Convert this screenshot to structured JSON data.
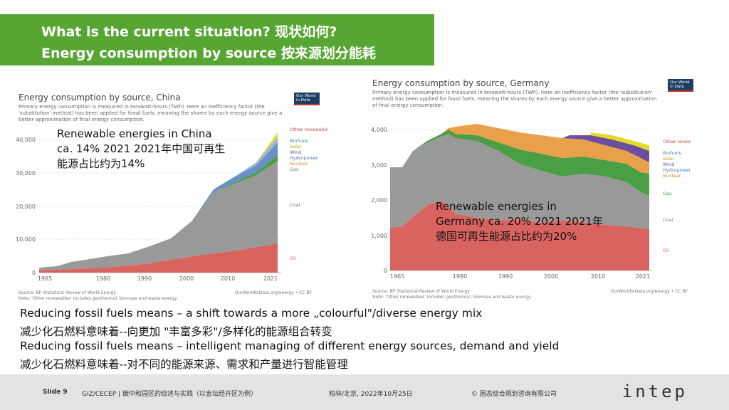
{
  "slide_title": {
    "line1": "What is the current situation? 现状如何?",
    "line2": "Energy consumption by source 按来源划分能耗"
  },
  "china_chart": {
    "title": "Energy consumption by source, China",
    "subtitle": "Primary energy consumption is measured in terawatt-hours (TWh). Here an inefficiency factor (the 'substitution' method) has been applied for fossil fuels, meaning the shares by each energy source give a better approximation of final energy consumption.",
    "logo": "Our World in Data",
    "y_ticks": [
      "40,000",
      "30,000",
      "20,000",
      "10,000",
      "0"
    ],
    "x_ticks": [
      "1965",
      "1980",
      "1990",
      "2000",
      "2010",
      "2021"
    ],
    "overlay": "Renewable energies in China ca. 14% 2021 2021年中国可再生能源占比约为14%",
    "legend": [
      "Other renewables",
      "Biofuels",
      "Solar",
      "Wind",
      "Hydropower",
      "Nuclear",
      "Gas",
      "Coal",
      "Oil"
    ],
    "source": "Source: BP Statistical Review of World Energy",
    "note": "Note: 'Other renewables' includes geothermal, biomass and waste energy.",
    "credit": "OurWorldInData.org/energy • CC BY"
  },
  "germany_chart": {
    "title": "Energy consumption by source, Germany",
    "subtitle": "Primary energy consumption is measured in terawatt-hours (TWh). Here an inefficiency factor (the 'substitution' method) has been applied for fossil fuels, meaning the shares by each energy source give a better approximation of final energy consumption.",
    "logo": "Our World in Data",
    "y_ticks": [
      "4,000",
      "3,000",
      "2,000",
      "1,000",
      "0"
    ],
    "x_ticks": [
      "1965",
      "1980",
      "1990",
      "2000",
      "2010",
      "2021"
    ],
    "overlay": "Renewable energies in Germany ca. 20% 2021 2021年德国可再生能源占比约为20%",
    "legend": [
      "Other renewables",
      "Biofuels",
      "Solar",
      "Wind",
      "Hydropower",
      "Nuclear",
      "Gas",
      "Coal",
      "Oil"
    ],
    "source": "Source: BP Statistical Review of World Energy",
    "note": "Note: 'Other renewables' includes geothermal, biomass and waste energy.",
    "credit": "OurWorldInData.org/energy • CC BY"
  },
  "paragraphs": [
    "Reducing fossil fuels means – a shift towards a more „colourful\"/diverse energy mix",
    "减少化石燃料意味着--向更加 \"丰富多彩\"/多样化的能源组合转变",
    "Reducing fossil fuels means – intelligent managing of different energy sources, demand and yield",
    "减少化石燃料意味着--对不同的能源来源、需求和产量进行智能管理"
  ],
  "footer": {
    "slide": "Slide 9",
    "project": "GIZ/CECEP | 碳中和园区的综述与实践（以金坛经开区为例）",
    "location": "柏林/北京, 2022年10月25日",
    "copyright": "© 固态综合规划咨询有限公司",
    "logo": "intep"
  },
  "colors": {
    "accent_green": "#57a532",
    "oil": "#d9645f",
    "coal": "#999999",
    "gas": "#4a9e44",
    "nuclear": "#e8a04a",
    "hydro": "#6a8fc4",
    "wind": "#6b4f9e",
    "solar": "#e6d92c",
    "biofuels": "#3b8c8c",
    "other": "#c04848"
  }
}
